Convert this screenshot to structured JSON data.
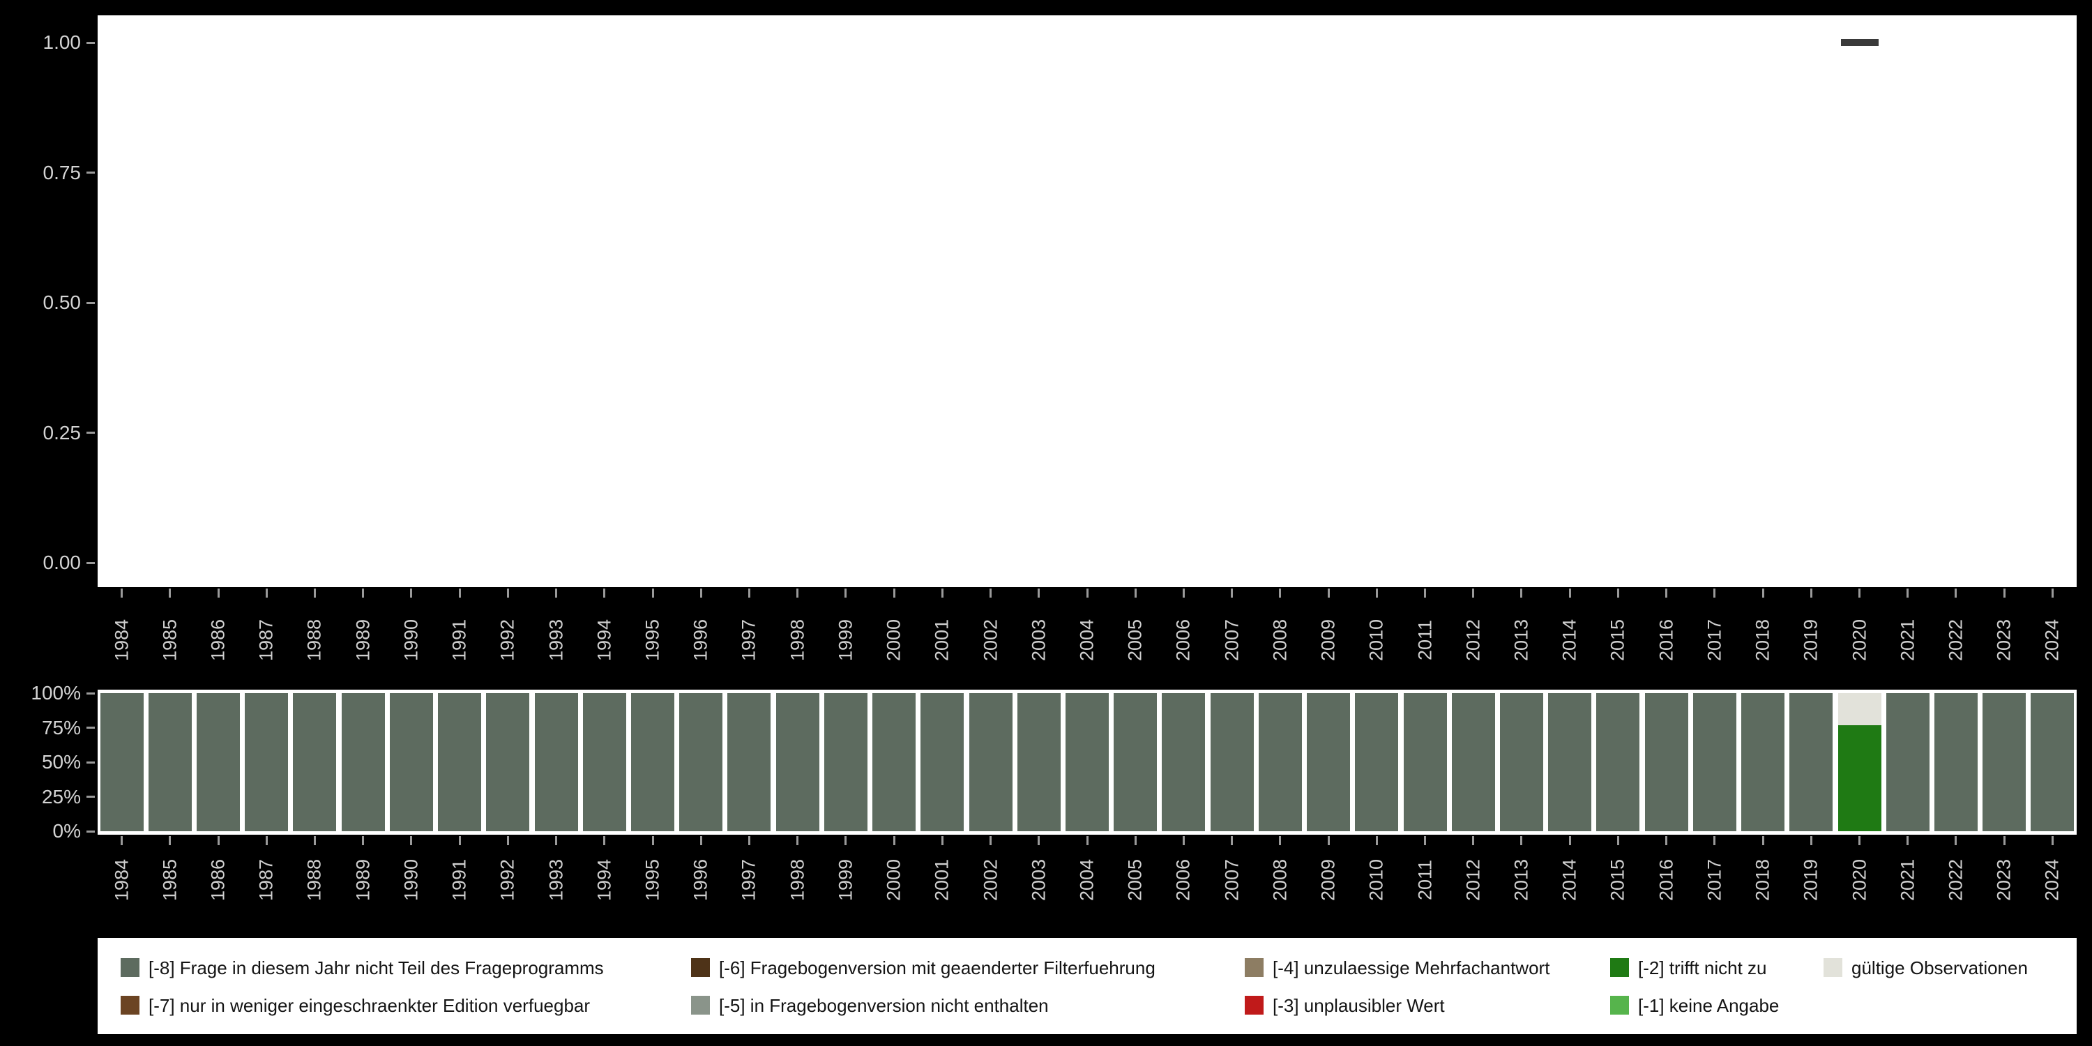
{
  "years": [
    "1984",
    "1985",
    "1986",
    "1987",
    "1988",
    "1989",
    "1990",
    "1991",
    "1992",
    "1993",
    "1994",
    "1995",
    "1996",
    "1997",
    "1998",
    "1999",
    "2000",
    "2001",
    "2002",
    "2003",
    "2004",
    "2005",
    "2006",
    "2007",
    "2008",
    "2009",
    "2010",
    "2011",
    "2012",
    "2013",
    "2014",
    "2015",
    "2016",
    "2017",
    "2018",
    "2019",
    "2020",
    "2021",
    "2022",
    "2023",
    "2024"
  ],
  "top_chart": {
    "y_ticks": [
      {
        "label": "1.00",
        "value": 1.0
      },
      {
        "label": "0.75",
        "value": 0.75
      },
      {
        "label": "0.50",
        "value": 0.5
      },
      {
        "label": "0.25",
        "value": 0.25
      },
      {
        "label": "0.00",
        "value": 0.0
      }
    ],
    "point": {
      "year": "2020",
      "value": 1.0
    }
  },
  "bottom_chart": {
    "y_ticks": [
      {
        "label": "100%",
        "value": 100
      },
      {
        "label": "75%",
        "value": 75
      },
      {
        "label": "50%",
        "value": 50
      },
      {
        "label": "25%",
        "value": 25
      },
      {
        "label": "0%",
        "value": 0
      }
    ]
  },
  "legend": {
    "items": [
      {
        "label": "[-8] Frage in diesem Jahr nicht Teil des Frageprogramms",
        "color_key": "-8",
        "row": 0,
        "col": 0
      },
      {
        "label": "[-7] nur in weniger eingeschraenkter Edition verfuegbar",
        "color_key": "-7",
        "row": 1,
        "col": 0
      },
      {
        "label": "[-6] Fragebogenversion mit geaenderter Filterfuehrung",
        "color_key": "-6",
        "row": 0,
        "col": 1
      },
      {
        "label": "[-5] in Fragebogenversion nicht enthalten",
        "color_key": "-5",
        "row": 1,
        "col": 1
      },
      {
        "label": "[-4] unzulaessige Mehrfachantwort",
        "color_key": "-4",
        "row": 0,
        "col": 2
      },
      {
        "label": "[-3] unplausibler Wert",
        "color_key": "-3",
        "row": 1,
        "col": 2
      },
      {
        "label": "[-2] trifft nicht zu",
        "color_key": "-2",
        "row": 0,
        "col": 3
      },
      {
        "label": "[-1] keine Angabe",
        "color_key": "-1",
        "row": 1,
        "col": 3
      },
      {
        "label": "gültige Observationen",
        "color_key": "valid",
        "row": 0,
        "col": 4
      }
    ]
  },
  "colors": {
    "-8": "#5d6b5f",
    "-7": "#6b4423",
    "-6": "#4e3318",
    "-5": "#8a948a",
    "-4": "#8d7d63",
    "-3": "#c01a1a",
    "-2": "#1f7a14",
    "-1": "#56b44c",
    "valid": "#e2e2da",
    "point": "#3a3a3a",
    "axis_text": "#d4d4d4",
    "background": "#000000",
    "plot_background": "#ffffff"
  },
  "chart_data": [
    {
      "type": "scatter",
      "title": "",
      "xlabel": "",
      "ylabel": "",
      "categories": [
        "1984",
        "1985",
        "1986",
        "1987",
        "1988",
        "1989",
        "1990",
        "1991",
        "1992",
        "1993",
        "1994",
        "1995",
        "1996",
        "1997",
        "1998",
        "1999",
        "2000",
        "2001",
        "2002",
        "2003",
        "2004",
        "2005",
        "2006",
        "2007",
        "2008",
        "2009",
        "2010",
        "2011",
        "2012",
        "2013",
        "2014",
        "2015",
        "2016",
        "2017",
        "2018",
        "2019",
        "2020",
        "2021",
        "2022",
        "2023",
        "2024"
      ],
      "points": [
        {
          "x": "2020",
          "y": 1.0
        }
      ],
      "ylim": [
        0,
        1
      ],
      "y_tick_labels": [
        "0.00",
        "0.25",
        "0.50",
        "0.75",
        "1.00"
      ],
      "marker": "horizontal-dash",
      "grid": false,
      "legend_position": "none"
    },
    {
      "type": "bar",
      "stacked": true,
      "unit": "percent",
      "title": "",
      "xlabel": "",
      "ylabel": "",
      "categories": [
        "1984",
        "1985",
        "1986",
        "1987",
        "1988",
        "1989",
        "1990",
        "1991",
        "1992",
        "1993",
        "1994",
        "1995",
        "1996",
        "1997",
        "1998",
        "1999",
        "2000",
        "2001",
        "2002",
        "2003",
        "2004",
        "2005",
        "2006",
        "2007",
        "2008",
        "2009",
        "2010",
        "2011",
        "2012",
        "2013",
        "2014",
        "2015",
        "2016",
        "2017",
        "2018",
        "2019",
        "2020",
        "2021",
        "2022",
        "2023",
        "2024"
      ],
      "series": [
        {
          "name": "[-8] Frage in diesem Jahr nicht Teil des Frageprogramms",
          "color": "#5d6b5f",
          "values": [
            100,
            100,
            100,
            100,
            100,
            100,
            100,
            100,
            100,
            100,
            100,
            100,
            100,
            100,
            100,
            100,
            100,
            100,
            100,
            100,
            100,
            100,
            100,
            100,
            100,
            100,
            100,
            100,
            100,
            100,
            100,
            100,
            100,
            100,
            100,
            100,
            0,
            100,
            100,
            100,
            100
          ]
        },
        {
          "name": "[-2] trifft nicht zu",
          "color": "#1f7a14",
          "values": [
            0,
            0,
            0,
            0,
            0,
            0,
            0,
            0,
            0,
            0,
            0,
            0,
            0,
            0,
            0,
            0,
            0,
            0,
            0,
            0,
            0,
            0,
            0,
            0,
            0,
            0,
            0,
            0,
            0,
            0,
            0,
            0,
            0,
            0,
            0,
            0,
            77,
            0,
            0,
            0,
            0
          ]
        },
        {
          "name": "gültige Observationen",
          "color": "#e2e2da",
          "values": [
            0,
            0,
            0,
            0,
            0,
            0,
            0,
            0,
            0,
            0,
            0,
            0,
            0,
            0,
            0,
            0,
            0,
            0,
            0,
            0,
            0,
            0,
            0,
            0,
            0,
            0,
            0,
            0,
            0,
            0,
            0,
            0,
            0,
            0,
            0,
            0,
            23,
            0,
            0,
            0,
            0
          ]
        }
      ],
      "ylim": [
        0,
        100
      ],
      "y_tick_labels": [
        "0%",
        "25%",
        "50%",
        "75%",
        "100%"
      ],
      "grid": false,
      "legend_position": "bottom"
    }
  ]
}
